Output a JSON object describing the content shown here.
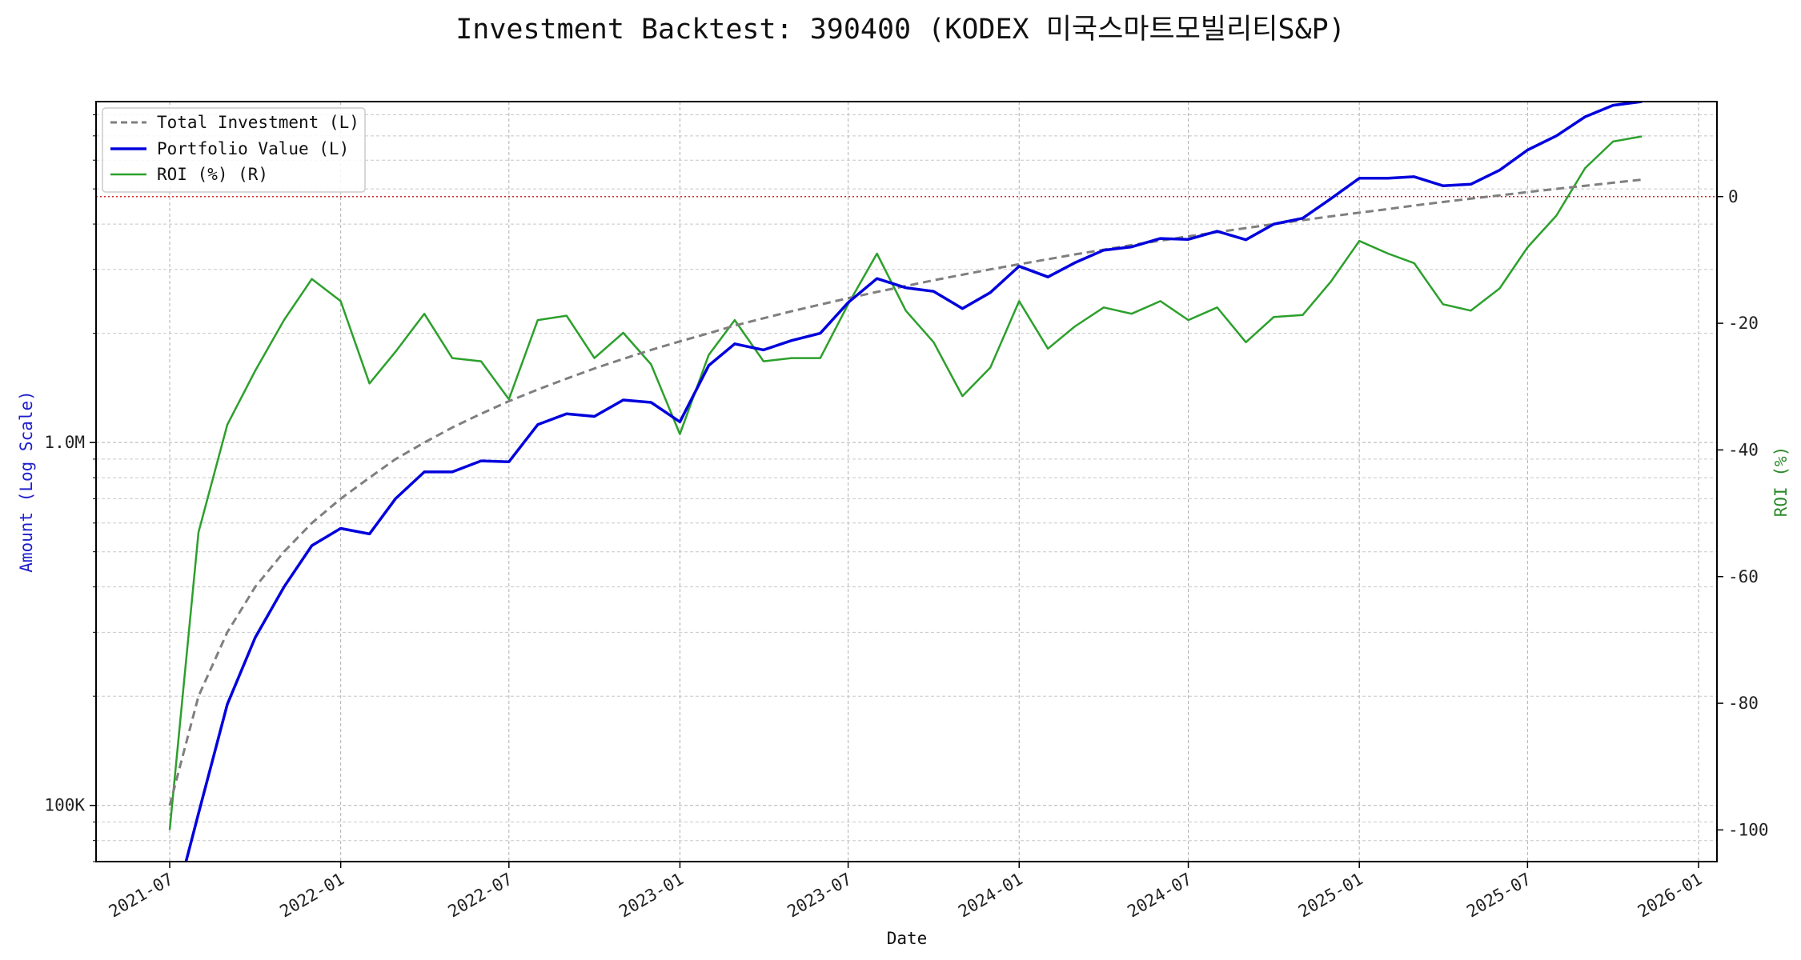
{
  "chart_data": {
    "type": "line",
    "title": "Investment Backtest: 390400 (KODEX 미국스마트모빌리티S&P)",
    "xlabel": "Date",
    "ylabel_left": "Amount (Log Scale)",
    "ylabel_right": "ROI (%)",
    "x_ticks": [
      "2021-07",
      "2022-01",
      "2022-07",
      "2023-01",
      "2023-07",
      "2024-01",
      "2024-07",
      "2025-01",
      "2025-07",
      "2026-01"
    ],
    "y_left_ticks": [
      {
        "value": 100000,
        "label": "100K"
      },
      {
        "value": 1000000,
        "label": "1.0M"
      }
    ],
    "y_right_ticks": [
      0,
      -20,
      -40,
      -60,
      -80,
      -100
    ],
    "y_left_scale": "log",
    "y_left_range": [
      70000,
      8700000
    ],
    "y_right_range": [
      -105,
      15
    ],
    "grid": true,
    "legend_position": "top-left",
    "reference_line": {
      "axis": "right",
      "value": 0,
      "color": "#d62728",
      "style": "dotted"
    },
    "x": [
      "2021-07-01",
      "2021-08-01",
      "2021-09-01",
      "2021-10-01",
      "2021-11-01",
      "2021-12-01",
      "2022-01-01",
      "2022-02-01",
      "2022-03-01",
      "2022-04-01",
      "2022-05-01",
      "2022-06-01",
      "2022-07-01",
      "2022-08-01",
      "2022-09-01",
      "2022-10-01",
      "2022-11-01",
      "2022-12-01",
      "2023-01-01",
      "2023-02-01",
      "2023-03-01",
      "2023-04-01",
      "2023-05-01",
      "2023-06-01",
      "2023-07-01",
      "2023-08-01",
      "2023-09-01",
      "2023-10-01",
      "2023-11-01",
      "2023-12-01",
      "2024-01-01",
      "2024-02-01",
      "2024-03-01",
      "2024-04-01",
      "2024-05-01",
      "2024-06-01",
      "2024-07-01",
      "2024-08-01",
      "2024-09-01",
      "2024-10-01",
      "2024-11-01",
      "2024-12-01",
      "2025-01-01",
      "2025-02-01",
      "2025-03-01",
      "2025-04-01",
      "2025-05-01",
      "2025-06-01",
      "2025-07-01",
      "2025-08-01",
      "2025-09-01",
      "2025-10-01",
      "2025-11-01"
    ],
    "series": [
      {
        "name": "Total Investment (L)",
        "axis": "left",
        "color": "#7f7f7f",
        "style": "dashed",
        "values": [
          100000,
          200000,
          300000,
          400000,
          500000,
          600000,
          700000,
          800000,
          900000,
          1000000,
          1100000,
          1200000,
          1300000,
          1400000,
          1500000,
          1600000,
          1700000,
          1800000,
          1900000,
          2000000,
          2100000,
          2200000,
          2300000,
          2400000,
          2500000,
          2600000,
          2700000,
          2800000,
          2900000,
          3000000,
          3100000,
          3200000,
          3300000,
          3400000,
          3500000,
          3600000,
          3700000,
          3800000,
          3900000,
          4000000,
          4100000,
          4200000,
          4300000,
          4400000,
          4500000,
          4600000,
          4700000,
          4800000,
          4900000,
          5000000,
          5100000,
          5200000,
          5300000
        ]
      },
      {
        "name": "Portfolio Value (L)",
        "axis": "left",
        "color": "#0000dd",
        "style": "solid",
        "values": [
          47000,
          95000,
          190000,
          290000,
          400000,
          520000,
          580000,
          560000,
          700000,
          830000,
          830000,
          890000,
          885000,
          1120000,
          1200000,
          1180000,
          1310000,
          1290000,
          1140000,
          1630000,
          1870000,
          1800000,
          1910000,
          2000000,
          2430000,
          2830000,
          2670000,
          2610000,
          2340000,
          2590000,
          3060000,
          2860000,
          3130000,
          3390000,
          3460000,
          3650000,
          3630000,
          3820000,
          3620000,
          4000000,
          4150000,
          4690000,
          5350000,
          5350000,
          5400000,
          5100000,
          5150000,
          5630000,
          6400000,
          7000000,
          7900000,
          8500000,
          8700000
        ]
      },
      {
        "name": "ROI (%) (R)",
        "axis": "right",
        "color": "#2ca02c",
        "style": "solid",
        "values": [
          -100,
          -53,
          -36,
          -27.5,
          -19.5,
          -13,
          -16.5,
          -29.5,
          -24.5,
          -18.5,
          -25.5,
          -26,
          -32,
          -19.5,
          -18.8,
          -25.5,
          -21.5,
          -26.5,
          -37.5,
          -25,
          -19.5,
          -26,
          -25.5,
          -25.5,
          -17,
          -9,
          -18,
          -23,
          -31.5,
          -27,
          -16.5,
          -24,
          -20.5,
          -17.5,
          -18.5,
          -16.5,
          -19.5,
          -17.5,
          -23,
          -19,
          -18.7,
          -13.5,
          -7,
          -9,
          -10.5,
          -17,
          -18,
          -14.5,
          -8,
          -3,
          4.5,
          8.7,
          9.5
        ]
      }
    ]
  }
}
